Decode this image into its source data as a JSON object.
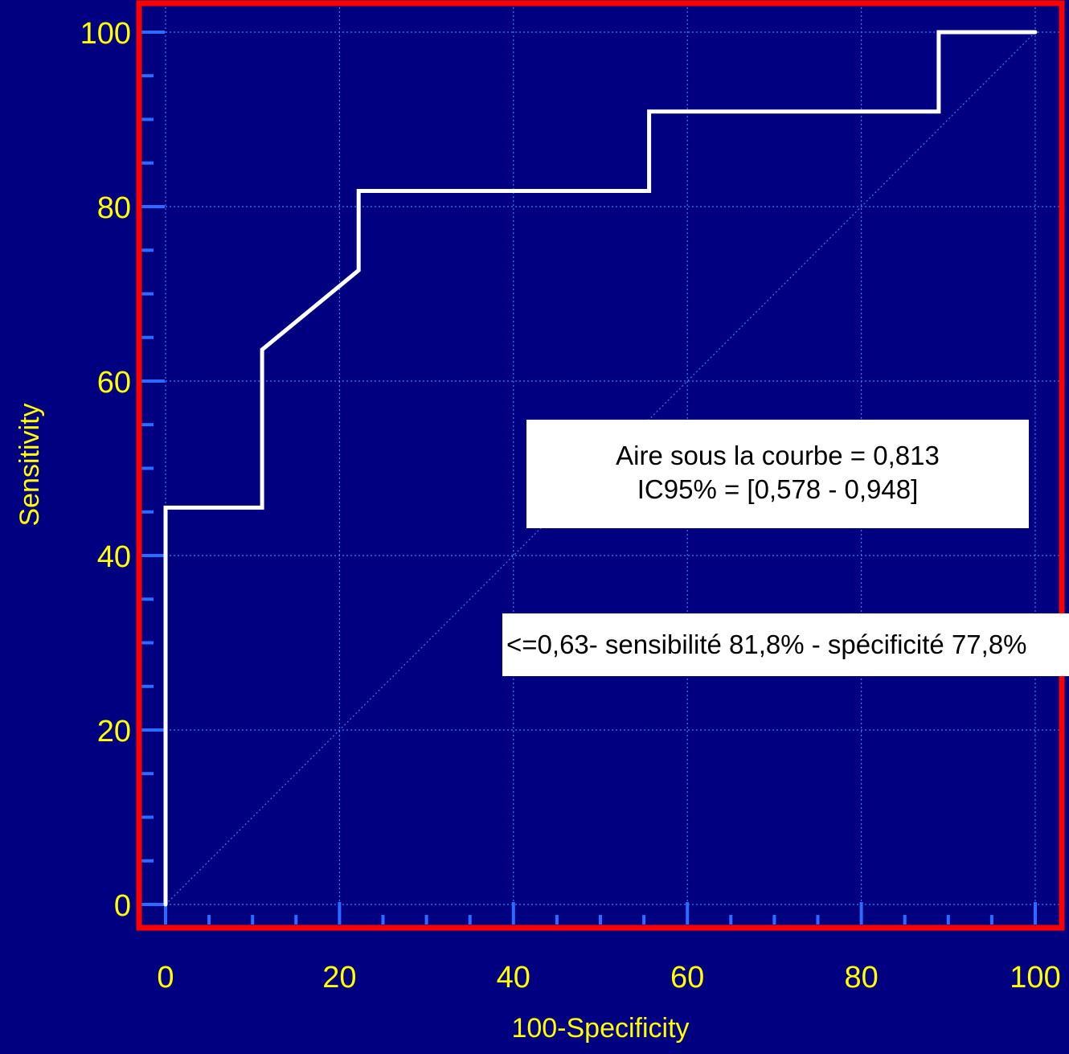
{
  "chart_data": {
    "type": "line",
    "xlabel": "100-Specificity",
    "ylabel": "Sensitivity",
    "xlim": [
      0,
      100
    ],
    "ylim": [
      0,
      100
    ],
    "x_ticks": [
      0,
      20,
      40,
      60,
      80,
      100
    ],
    "y_ticks": [
      0,
      20,
      40,
      60,
      80,
      100
    ],
    "grid": true,
    "series": [
      {
        "values": [
          {
            "x": 0,
            "y": 0
          },
          {
            "x": 0,
            "y": 45.5
          },
          {
            "x": 11.1,
            "y": 45.5
          },
          {
            "x": 11.1,
            "y": 63.6
          },
          {
            "x": 22.2,
            "y": 72.7
          },
          {
            "x": 22.2,
            "y": 81.8
          },
          {
            "x": 55.6,
            "y": 81.8
          },
          {
            "x": 55.6,
            "y": 90.9
          },
          {
            "x": 88.9,
            "y": 90.9
          },
          {
            "x": 88.9,
            "y": 100
          },
          {
            "x": 100,
            "y": 100
          }
        ]
      }
    ],
    "reference_line": [
      [
        0,
        0
      ],
      [
        100,
        100
      ]
    ],
    "annotations": [
      {
        "lines": [
          "Aire sous la courbe = 0,813",
          "IC95%  = [0,578 - 0,948]"
        ]
      },
      {
        "text": "<=0,63- sensibilité 81,8% -  spécificité 77,8%"
      }
    ]
  },
  "colors": {
    "background": "#000080",
    "frame": "#ff0000",
    "curve": "#ffffff",
    "grid": "#3a7bff",
    "ticks": "#2a6cff",
    "text": "#ffff00"
  }
}
